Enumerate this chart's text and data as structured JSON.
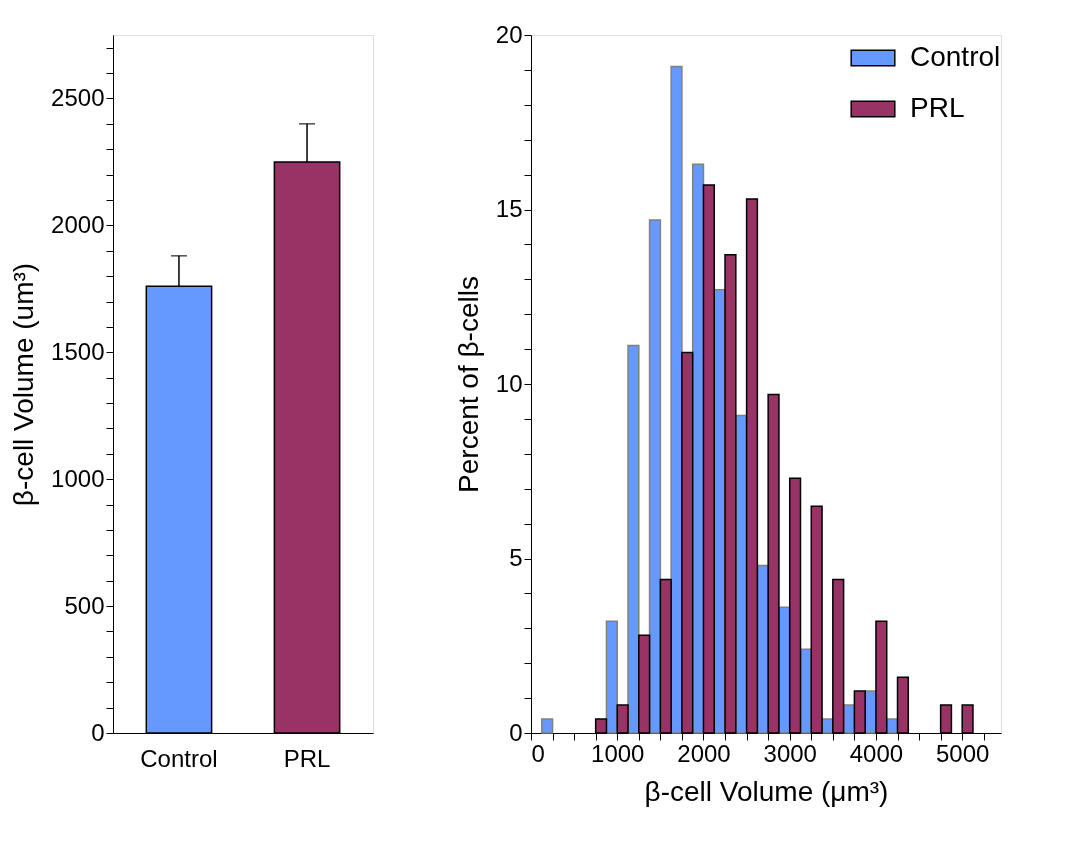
{
  "chart_data": [
    {
      "type": "bar",
      "categories": [
        "Control",
        "PRL"
      ],
      "values": [
        1760,
        2250
      ],
      "colors": [
        "#6699ff",
        "#993366"
      ],
      "errors": [
        [
          1760,
          1880
        ],
        [
          2250,
          2400
        ]
      ],
      "ylabel": "β-cell Volume (um³)",
      "ylim": [
        0,
        2750
      ],
      "yticks": [
        0,
        {
          "value": 100,
          "label": null
        },
        {
          "value": 200,
          "label": null
        },
        {
          "value": 300,
          "label": null
        },
        {
          "value": 400,
          "label": null
        },
        500,
        {
          "value": 600,
          "label": null
        },
        {
          "value": 700,
          "label": null
        },
        {
          "value": 800,
          "label": null
        },
        {
          "value": 900,
          "label": null
        },
        1000,
        {
          "value": 1100,
          "label": null
        },
        {
          "value": 1200,
          "label": null
        },
        {
          "value": 1300,
          "label": null
        },
        {
          "value": 1400,
          "label": null
        },
        1500,
        {
          "value": 1600,
          "label": null
        },
        {
          "value": 1700,
          "label": null
        },
        {
          "value": 1800,
          "label": null
        },
        {
          "value": 1900,
          "label": null
        },
        2000,
        {
          "value": 2100,
          "label": null
        },
        {
          "value": 2200,
          "label": null
        },
        {
          "value": 2300,
          "label": null
        },
        {
          "value": 2400,
          "label": null
        },
        2500,
        {
          "value": 2600,
          "label": null
        },
        {
          "value": 2700,
          "label": null
        }
      ]
    },
    {
      "type": "bar",
      "xlabel": "β-cell Volume (μm³)",
      "ylabel": "Percent of β-cells",
      "legend": "top right",
      "xlim": [
        0,
        5450
      ],
      "ylim": [
        0,
        20
      ],
      "xticks": [
        0,
        {
          "value": 250,
          "label": null
        },
        {
          "value": 500,
          "label": null
        },
        {
          "value": 750,
          "label": null
        },
        1000,
        {
          "value": 1250,
          "label": null
        },
        {
          "value": 1500,
          "label": null
        },
        {
          "value": 1750,
          "label": null
        },
        2000,
        {
          "value": 2250,
          "label": null
        },
        {
          "value": 2500,
          "label": null
        },
        {
          "value": 2750,
          "label": null
        },
        3000,
        {
          "value": 3250,
          "label": null
        },
        {
          "value": 3500,
          "label": null
        },
        {
          "value": 3750,
          "label": null
        },
        4000,
        {
          "value": 4250,
          "label": null
        },
        {
          "value": 4500,
          "label": null
        },
        {
          "value": 4750,
          "label": null
        },
        5000,
        {
          "value": 5250,
          "label": null
        }
      ],
      "yticks": [
        0,
        {
          "value": 1,
          "label": null
        },
        {
          "value": 2,
          "label": null
        },
        {
          "value": 3,
          "label": null
        },
        {
          "value": 4,
          "label": null
        },
        5,
        {
          "value": 6,
          "label": null
        },
        {
          "value": 7,
          "label": null
        },
        {
          "value": 8,
          "label": null
        },
        {
          "value": 9,
          "label": null
        },
        10,
        {
          "value": 11,
          "label": null
        },
        {
          "value": 12,
          "label": null
        },
        {
          "value": 13,
          "label": null
        },
        {
          "value": 14,
          "label": null
        },
        15,
        {
          "value": 16,
          "label": null
        },
        {
          "value": 17,
          "label": null
        },
        {
          "value": 18,
          "label": null
        },
        {
          "value": 19,
          "label": null
        },
        20
      ],
      "series": [
        {
          "name": "Control",
          "color": "#6699ff",
          "x": [
            187.5,
            937.5,
            1187.5,
            1437.5,
            1687.5,
            1937.5,
            2187.5,
            2437.5,
            2687.5,
            2937.5,
            3187.5,
            3437.5,
            3687.5,
            3937.5,
            4187.5
          ],
          "values": [
            0.4,
            3.2,
            11.1,
            14.7,
            19.1,
            16.3,
            12.7,
            9.1,
            4.8,
            3.6,
            2.4,
            0.4,
            0.8,
            1.2,
            0.4
          ]
        },
        {
          "name": "PRL",
          "color": "#993366",
          "x": [
            812.5,
            1062.5,
            1312.5,
            1562.5,
            1812.5,
            2062.5,
            2312.5,
            2562.5,
            2812.5,
            3062.5,
            3312.5,
            3562.5,
            3812.5,
            4062.5,
            4312.5,
            4812.5,
            5062.5
          ],
          "values": [
            0.4,
            0.8,
            2.8,
            4.4,
            10.9,
            15.7,
            13.7,
            15.3,
            9.7,
            7.3,
            6.5,
            4.4,
            1.2,
            3.2,
            1.6,
            0.8,
            0.8
          ]
        }
      ]
    }
  ]
}
